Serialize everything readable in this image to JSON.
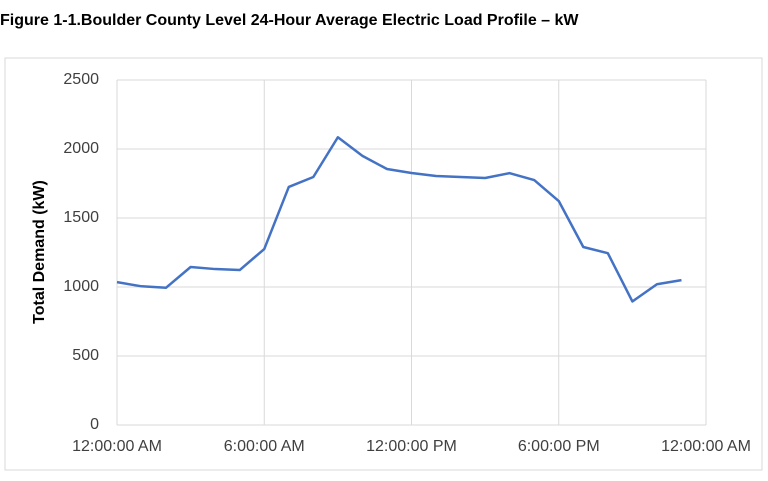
{
  "chart_data": {
    "type": "line",
    "title": "Figure 1-1.Boulder County Level 24-Hour Average Electric Load Profile – kW",
    "y_label": "Total Demand (kW)",
    "x": [
      0,
      1,
      2,
      3,
      4,
      5,
      6,
      7,
      8,
      9,
      10,
      11,
      12,
      13,
      14,
      15,
      16,
      17,
      18,
      19,
      20,
      21,
      22,
      23
    ],
    "series": [
      {
        "name": "Total Demand",
        "color": "#4472c4",
        "values": [
          1035,
          1005,
          995,
          1145,
          1130,
          1123,
          1275,
          1725,
          1797,
          2085,
          1950,
          1855,
          1826,
          1804,
          1797,
          1790,
          1825,
          1775,
          1623,
          1290,
          1245,
          895,
          1020,
          1050
        ]
      }
    ],
    "xlim": [
      0,
      24
    ],
    "xticks": [
      {
        "value": 0,
        "label": "12:00:00 AM"
      },
      {
        "value": 6,
        "label": "6:00:00 AM"
      },
      {
        "value": 12,
        "label": "12:00:00 PM"
      },
      {
        "value": 18,
        "label": "6:00:00 PM"
      },
      {
        "value": 24,
        "label": "12:00:00 AM"
      }
    ],
    "ylim": [
      0,
      2500
    ],
    "yticks": [
      0,
      500,
      1000,
      1500,
      2000,
      2500
    ],
    "grid": true
  }
}
